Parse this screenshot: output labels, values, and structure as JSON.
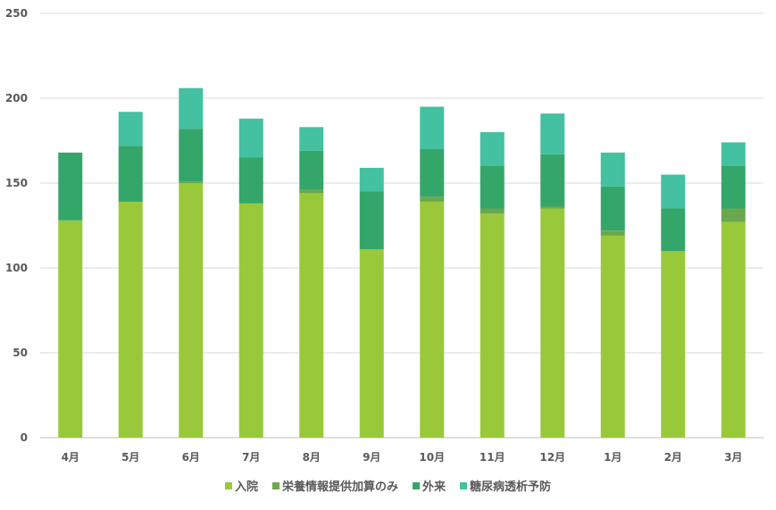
{
  "chart_data": {
    "type": "bar",
    "stacked": true,
    "title": "",
    "xlabel": "",
    "ylabel": "",
    "ylim": [
      0,
      250
    ],
    "yticks": [
      0,
      50,
      100,
      150,
      200,
      250
    ],
    "grid": true,
    "legend_position": "bottom",
    "categories": [
      "4月",
      "5月",
      "6月",
      "7月",
      "8月",
      "9月",
      "10月",
      "11月",
      "12月",
      "1月",
      "2月",
      "3月"
    ],
    "series": [
      {
        "name": "入院",
        "color": "#99c93b",
        "values": [
          128,
          139,
          150,
          138,
          144,
          111,
          139,
          132,
          135,
          119,
          110,
          127
        ]
      },
      {
        "name": "栄養情報提供加算のみ",
        "color": "#6aa84f",
        "values": [
          0,
          0,
          1,
          0,
          2,
          0,
          3,
          3,
          1,
          3,
          0,
          8
        ]
      },
      {
        "name": "外来",
        "color": "#35a66a",
        "values": [
          40,
          33,
          31,
          27,
          23,
          34,
          28,
          25,
          31,
          26,
          25,
          25
        ]
      },
      {
        "name": "糖尿病透析予防",
        "color": "#43c1a0",
        "values": [
          0,
          20,
          24,
          23,
          14,
          14,
          25,
          20,
          24,
          20,
          20,
          14
        ]
      }
    ]
  }
}
